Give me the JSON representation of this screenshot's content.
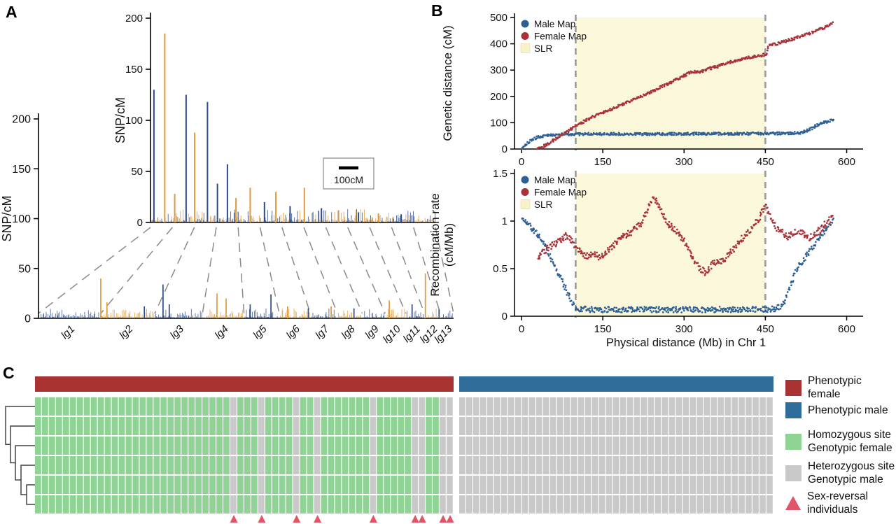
{
  "panels": {
    "a_label": "A",
    "b_label": "B",
    "c_label": "C"
  },
  "chart_data": [
    {
      "id": "A_main",
      "type": "spike-profile",
      "ylabel": "SNP/cM",
      "ylim": [
        0,
        200
      ],
      "yticks": [
        0,
        50,
        100,
        150,
        200
      ],
      "categories": [
        "lg1",
        "lg2",
        "lg3",
        "lg4",
        "lg5",
        "lg6",
        "lg7",
        "lg8",
        "lg9",
        "lg10",
        "lg11",
        "lg12",
        "lg13"
      ],
      "lg_rel_widths": [
        15,
        13,
        11.5,
        10,
        8.5,
        7.5,
        6.5,
        6,
        5.5,
        5,
        4.5,
        3.8,
        3.2
      ],
      "colors": {
        "blue": "#2c4a8c",
        "orange": "#e09a3a"
      },
      "noise_max": 9,
      "spikes": [
        {
          "x": 0.15,
          "h": 40,
          "c": "orange"
        },
        {
          "x": 0.165,
          "h": 16,
          "c": "orange"
        },
        {
          "x": 0.255,
          "h": 12,
          "c": "blue"
        },
        {
          "x": 0.3,
          "h": 34,
          "c": "blue"
        },
        {
          "x": 0.315,
          "h": 14,
          "c": "blue"
        },
        {
          "x": 0.43,
          "h": 25,
          "c": "orange"
        },
        {
          "x": 0.452,
          "h": 20,
          "c": "orange"
        },
        {
          "x": 0.51,
          "h": 14,
          "c": "blue"
        },
        {
          "x": 0.56,
          "h": 24,
          "c": "blue"
        },
        {
          "x": 0.6,
          "h": 12,
          "c": "orange"
        },
        {
          "x": 0.65,
          "h": 10,
          "c": "blue"
        },
        {
          "x": 0.705,
          "h": 12,
          "c": "orange"
        },
        {
          "x": 0.76,
          "h": 10,
          "c": "blue"
        },
        {
          "x": 0.845,
          "h": 18,
          "c": "orange"
        },
        {
          "x": 0.932,
          "h": 45,
          "c": "orange"
        },
        {
          "x": 0.9,
          "h": 14,
          "c": "blue"
        },
        {
          "x": 0.965,
          "h": 9,
          "c": "blue"
        }
      ]
    },
    {
      "id": "A_inset",
      "type": "spike-profile",
      "ylabel": "SNP/cM",
      "ylim": [
        0,
        200
      ],
      "yticks": [
        0,
        50,
        100,
        150,
        200
      ],
      "scalebar_label": "100cM",
      "noise_max": 12,
      "spikes": [
        {
          "x": 0.012,
          "h": 130,
          "c": "blue"
        },
        {
          "x": 0.05,
          "h": 185,
          "c": "orange"
        },
        {
          "x": 0.085,
          "h": 28,
          "c": "orange"
        },
        {
          "x": 0.125,
          "h": 125,
          "c": "blue"
        },
        {
          "x": 0.155,
          "h": 88,
          "c": "orange"
        },
        {
          "x": 0.2,
          "h": 118,
          "c": "blue"
        },
        {
          "x": 0.235,
          "h": 38,
          "c": "blue"
        },
        {
          "x": 0.27,
          "h": 57,
          "c": "blue"
        },
        {
          "x": 0.3,
          "h": 24,
          "c": "orange"
        },
        {
          "x": 0.35,
          "h": 34,
          "c": "orange"
        },
        {
          "x": 0.4,
          "h": 20,
          "c": "blue"
        },
        {
          "x": 0.44,
          "h": 30,
          "c": "orange"
        },
        {
          "x": 0.49,
          "h": 16,
          "c": "blue"
        },
        {
          "x": 0.54,
          "h": 34,
          "c": "orange"
        },
        {
          "x": 0.6,
          "h": 14,
          "c": "blue"
        },
        {
          "x": 0.66,
          "h": 12,
          "c": "orange"
        },
        {
          "x": 0.73,
          "h": 10,
          "c": "blue"
        },
        {
          "x": 0.8,
          "h": 9,
          "c": "orange"
        },
        {
          "x": 0.88,
          "h": 8,
          "c": "blue"
        }
      ]
    },
    {
      "id": "B_genetic",
      "type": "scatter",
      "ylabel": [
        "Genetic distance (cM)"
      ],
      "ylim": [
        0,
        500
      ],
      "yticks": [
        0,
        100,
        200,
        300,
        400,
        500
      ],
      "xlim": [
        0,
        620
      ],
      "xticks": [
        0,
        150,
        300,
        450,
        600
      ],
      "slr_region": [
        100,
        450
      ],
      "slr_fill": "#faf7da",
      "legend": [
        {
          "label": "Male Map",
          "color": "#2e6096"
        },
        {
          "label": "Female Map",
          "color": "#a93238"
        },
        {
          "label": "SLR",
          "color": "#f7f2cc"
        }
      ],
      "series": [
        {
          "name": "Male Map",
          "color": "#2e6096",
          "jitter": 5,
          "points": [
            [
              0,
              3
            ],
            [
              15,
              30
            ],
            [
              30,
              45
            ],
            [
              50,
              53
            ],
            [
              70,
              56
            ],
            [
              120,
              57
            ],
            [
              200,
              57
            ],
            [
              300,
              58
            ],
            [
              400,
              58
            ],
            [
              470,
              59
            ],
            [
              500,
              60
            ],
            [
              515,
              62
            ],
            [
              530,
              72
            ],
            [
              545,
              90
            ],
            [
              560,
              102
            ],
            [
              575,
              110
            ]
          ]
        },
        {
          "name": "Female Map",
          "color": "#a93238",
          "jitter": 5,
          "points": [
            [
              28,
              0
            ],
            [
              45,
              15
            ],
            [
              60,
              35
            ],
            [
              80,
              62
            ],
            [
              100,
              88
            ],
            [
              130,
              120
            ],
            [
              150,
              140
            ],
            [
              180,
              163
            ],
            [
              200,
              182
            ],
            [
              230,
              208
            ],
            [
              250,
              228
            ],
            [
              280,
              258
            ],
            [
              300,
              278
            ],
            [
              315,
              295
            ],
            [
              330,
              292
            ],
            [
              345,
              305
            ],
            [
              360,
              312
            ],
            [
              380,
              328
            ],
            [
              400,
              338
            ],
            [
              420,
              348
            ],
            [
              440,
              355
            ],
            [
              452,
              360
            ],
            [
              456,
              392
            ],
            [
              470,
              400
            ],
            [
              490,
              412
            ],
            [
              510,
              425
            ],
            [
              530,
              438
            ],
            [
              550,
              455
            ],
            [
              565,
              468
            ],
            [
              575,
              478
            ]
          ]
        }
      ]
    },
    {
      "id": "B_recomb",
      "type": "scatter",
      "ylabel": [
        "Recombination rate",
        "(cM/Mb)"
      ],
      "ylim": [
        0,
        1.5
      ],
      "yticks": [
        0,
        0.5,
        1,
        1.5
      ],
      "xlim": [
        0,
        620
      ],
      "xticks": [
        0,
        150,
        300,
        450,
        600
      ],
      "xlabel": "Physical distance (Mb) in Chr 1",
      "slr_region": [
        100,
        450
      ],
      "slr_fill": "#faf7da",
      "legend": [
        {
          "label": "Male Map",
          "color": "#2e6096"
        },
        {
          "label": "Female Map",
          "color": "#a93238"
        },
        {
          "label": "SLR",
          "color": "#f7f2cc"
        }
      ],
      "series": [
        {
          "name": "Male Map",
          "color": "#2e6096",
          "jitter": 0.03,
          "points": [
            [
              0,
              1.05
            ],
            [
              15,
              0.95
            ],
            [
              30,
              0.85
            ],
            [
              45,
              0.72
            ],
            [
              60,
              0.55
            ],
            [
              70,
              0.43
            ],
            [
              80,
              0.3
            ],
            [
              90,
              0.17
            ],
            [
              100,
              0.08
            ],
            [
              130,
              0.07
            ],
            [
              200,
              0.07
            ],
            [
              300,
              0.07
            ],
            [
              400,
              0.07
            ],
            [
              460,
              0.07
            ],
            [
              475,
              0.09
            ],
            [
              485,
              0.15
            ],
            [
              495,
              0.3
            ],
            [
              505,
              0.45
            ],
            [
              515,
              0.55
            ],
            [
              525,
              0.63
            ],
            [
              535,
              0.7
            ],
            [
              545,
              0.78
            ],
            [
              555,
              0.86
            ],
            [
              565,
              0.93
            ],
            [
              575,
              1.0
            ]
          ]
        },
        {
          "name": "Female Map",
          "color": "#a93238",
          "jitter": 0.035,
          "points": [
            [
              30,
              0.62
            ],
            [
              45,
              0.7
            ],
            [
              60,
              0.76
            ],
            [
              75,
              0.82
            ],
            [
              85,
              0.85
            ],
            [
              95,
              0.78
            ],
            [
              105,
              0.7
            ],
            [
              115,
              0.64
            ],
            [
              125,
              0.63
            ],
            [
              135,
              0.66
            ],
            [
              145,
              0.62
            ],
            [
              155,
              0.67
            ],
            [
              165,
              0.72
            ],
            [
              175,
              0.78
            ],
            [
              190,
              0.84
            ],
            [
              205,
              0.9
            ],
            [
              220,
              0.97
            ],
            [
              230,
              1.08
            ],
            [
              238,
              1.2
            ],
            [
              245,
              1.25
            ],
            [
              252,
              1.18
            ],
            [
              260,
              1.08
            ],
            [
              270,
              0.98
            ],
            [
              280,
              0.92
            ],
            [
              290,
              0.87
            ],
            [
              300,
              0.8
            ],
            [
              310,
              0.68
            ],
            [
              320,
              0.58
            ],
            [
              330,
              0.5
            ],
            [
              340,
              0.46
            ],
            [
              348,
              0.52
            ],
            [
              355,
              0.58
            ],
            [
              365,
              0.56
            ],
            [
              375,
              0.6
            ],
            [
              385,
              0.66
            ],
            [
              395,
              0.73
            ],
            [
              405,
              0.8
            ],
            [
              415,
              0.86
            ],
            [
              425,
              0.92
            ],
            [
              435,
              1.0
            ],
            [
              443,
              1.08
            ],
            [
              450,
              1.15
            ],
            [
              456,
              1.1
            ],
            [
              462,
              1.0
            ],
            [
              470,
              0.93
            ],
            [
              480,
              0.88
            ],
            [
              490,
              0.83
            ],
            [
              500,
              0.86
            ],
            [
              510,
              0.9
            ],
            [
              520,
              0.86
            ],
            [
              530,
              0.82
            ],
            [
              540,
              0.86
            ],
            [
              550,
              0.9
            ],
            [
              560,
              0.96
            ],
            [
              570,
              1.02
            ],
            [
              575,
              1.05
            ]
          ]
        }
      ]
    },
    {
      "id": "C_heatmap",
      "type": "heatmap",
      "rows": 6,
      "phenotype_blocks": [
        {
          "label": "Phenotypic female",
          "color": "#a93232",
          "columns": 60
        },
        {
          "label": "Phenotypic male",
          "color": "#2f6d9b",
          "columns": 45
        }
      ],
      "cell_colors": {
        "female_genotype": "#8fd495",
        "male_genotype": "#c9c9c9"
      },
      "sex_reversal_columns": [
        28,
        32,
        37,
        40,
        48,
        54,
        55,
        58,
        59
      ],
      "triangle_color": "#e05568",
      "legend": [
        {
          "line1": "Phenotypic female",
          "line2": "",
          "color": "#a93232",
          "shape": "square"
        },
        {
          "line1": "Phenotypic male",
          "line2": "",
          "color": "#2f6d9b",
          "shape": "square"
        },
        {
          "line1": "Homozygous site",
          "line2": "Genotypic female",
          "color": "#8fd495",
          "shape": "square"
        },
        {
          "line1": "Heterozygous site",
          "line2": "Genotypic male",
          "color": "#c9c9c9",
          "shape": "square"
        },
        {
          "line1": "Sex-reversal",
          "line2": "individuals",
          "color": "#e05568",
          "shape": "triangle"
        }
      ]
    }
  ]
}
